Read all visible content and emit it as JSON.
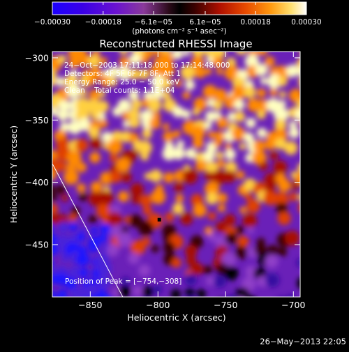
{
  "chart_data": {
    "type": "heatmap",
    "title": "Reconstructed RHESSI Image",
    "xlabel": "Heliocentric X (arcsec)",
    "ylabel": "Heliocentric Y (arcsec)",
    "xlim": [
      -878,
      -695
    ],
    "ylim": [
      -492,
      -295
    ],
    "x_ticks": [
      {
        "value": -850,
        "label": "−850"
      },
      {
        "value": -800,
        "label": "−800"
      },
      {
        "value": -750,
        "label": "−750"
      },
      {
        "value": -700,
        "label": "−700"
      }
    ],
    "y_ticks": [
      {
        "value": -300,
        "label": "−300"
      },
      {
        "value": -350,
        "label": "−350"
      },
      {
        "value": -400,
        "label": "−400"
      },
      {
        "value": -450,
        "label": "−450"
      }
    ],
    "colorbar": {
      "range": [
        -0.0003,
        0.0003
      ],
      "ticks": [
        {
          "value": -0.0003,
          "label": "−0.00030"
        },
        {
          "value": -0.00018,
          "label": "−0.00018"
        },
        {
          "value": -6.1e-05,
          "label": "−6.1e−05"
        },
        {
          "value": 6.1e-05,
          "label": "6.1e−05"
        },
        {
          "value": 0.00018,
          "label": "0.00018"
        },
        {
          "value": 0.0003,
          "label": "0.00030"
        }
      ],
      "unit_label": "(photons cm⁻² s⁻¹ asec⁻²)"
    },
    "info_lines": [
      "24−Oct−2003 17:11:18.000 to 17:14:48.000",
      "Detectors: 4F 5F 6F 7F 8F, Att 1",
      "Energy Range: 25.0 − 50.0 keV",
      "Clean    Total counts: 1.1E+04"
    ],
    "peak_annotation": "Position of Peak = [−754,−308]",
    "peak_position": [
      -754,
      -308
    ],
    "limb_line": [
      [
        -878,
        -385
      ],
      [
        -826,
        -492
      ]
    ],
    "footer_timestamp": "26−May−2013 22:05"
  }
}
